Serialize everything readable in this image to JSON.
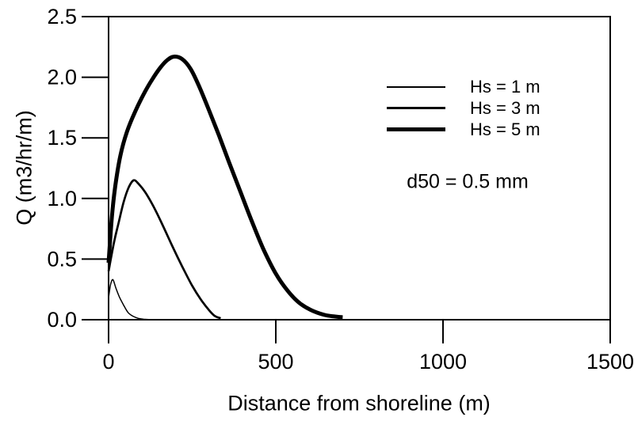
{
  "chart_data": {
    "type": "line",
    "title": "",
    "xlabel": "Distance from shoreline (m)",
    "ylabel": "Q (m3/hr/m)",
    "xlim": [
      0,
      1500
    ],
    "ylim": [
      0,
      2.5
    ],
    "xticks": {
      "values": [
        0,
        500,
        1000,
        1500
      ],
      "labels": [
        "0",
        "500",
        "1000",
        "1500"
      ]
    },
    "yticks": {
      "values": [
        0,
        0.5,
        1.0,
        1.5,
        2.0,
        2.5
      ],
      "labels": [
        "0.0",
        "0.5",
        "1.0",
        "1.5",
        "2.0",
        "2.5"
      ]
    },
    "grid": false,
    "frame": true,
    "line_color": "#000000",
    "legend_position": "inside upper right",
    "annotation": "d50 = 0.5 mm",
    "series": [
      {
        "name": "Hs = 1 m",
        "line_width": 1.5,
        "peak": {
          "x": 13,
          "q": 0.33
        },
        "points": [
          [
            0,
            0.18
          ],
          [
            6,
            0.29
          ],
          [
            13,
            0.33
          ],
          [
            22,
            0.26
          ],
          [
            32,
            0.19
          ],
          [
            45,
            0.12
          ],
          [
            58,
            0.06
          ],
          [
            72,
            0.03
          ],
          [
            88,
            0.012
          ],
          [
            105,
            0.004
          ],
          [
            120,
            0.002
          ]
        ]
      },
      {
        "name": "Hs = 3 m",
        "line_width": 2.7,
        "peak": {
          "x": 75,
          "q": 1.15
        },
        "points": [
          [
            0,
            0.4
          ],
          [
            8,
            0.52
          ],
          [
            18,
            0.66
          ],
          [
            30,
            0.8
          ],
          [
            45,
            0.97
          ],
          [
            60,
            1.09
          ],
          [
            75,
            1.15
          ],
          [
            90,
            1.12
          ],
          [
            110,
            1.05
          ],
          [
            135,
            0.93
          ],
          [
            160,
            0.79
          ],
          [
            190,
            0.61
          ],
          [
            220,
            0.44
          ],
          [
            250,
            0.28
          ],
          [
            275,
            0.17
          ],
          [
            300,
            0.08
          ],
          [
            318,
            0.03
          ],
          [
            335,
            0.012
          ]
        ]
      },
      {
        "name": "Hs = 5 m",
        "line_width": 5,
        "peak": {
          "x": 195,
          "q": 2.17
        },
        "points": [
          [
            0,
            0.47
          ],
          [
            10,
            0.85
          ],
          [
            20,
            1.1
          ],
          [
            35,
            1.35
          ],
          [
            55,
            1.55
          ],
          [
            80,
            1.72
          ],
          [
            105,
            1.86
          ],
          [
            130,
            1.98
          ],
          [
            155,
            2.08
          ],
          [
            175,
            2.14
          ],
          [
            195,
            2.17
          ],
          [
            220,
            2.15
          ],
          [
            245,
            2.07
          ],
          [
            270,
            1.93
          ],
          [
            300,
            1.73
          ],
          [
            330,
            1.52
          ],
          [
            360,
            1.3
          ],
          [
            395,
            1.05
          ],
          [
            430,
            0.8
          ],
          [
            465,
            0.57
          ],
          [
            500,
            0.38
          ],
          [
            535,
            0.24
          ],
          [
            570,
            0.14
          ],
          [
            605,
            0.08
          ],
          [
            645,
            0.04
          ],
          [
            675,
            0.027
          ],
          [
            700,
            0.02
          ]
        ]
      }
    ]
  }
}
